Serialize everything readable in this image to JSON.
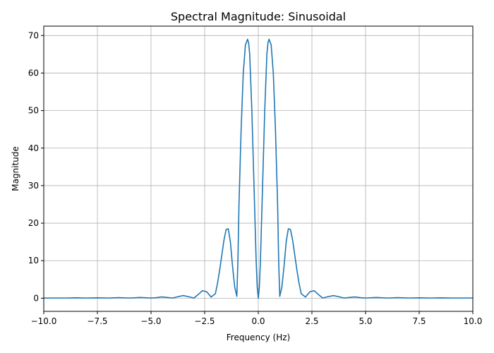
{
  "chart_data": {
    "type": "line",
    "title": "Spectral Magnitude: Sinusoidal",
    "xlabel": "Frequency (Hz)",
    "ylabel": "Magnitude",
    "xlim": [
      -10.0,
      10.0
    ],
    "ylim": [
      -3.5,
      72.5
    ],
    "xticks": [
      -10.0,
      -7.5,
      -5.0,
      -2.5,
      0.0,
      2.5,
      5.0,
      7.5,
      10.0
    ],
    "xtick_labels": [
      "−10.0",
      "−7.5",
      "−5.0",
      "−2.5",
      "0.0",
      "2.5",
      "5.0",
      "7.5",
      "10.0"
    ],
    "yticks": [
      0,
      10,
      20,
      30,
      40,
      50,
      60,
      70
    ],
    "ytick_labels": [
      "0",
      "10",
      "20",
      "30",
      "40",
      "50",
      "60",
      "70"
    ],
    "grid": true,
    "series": [
      {
        "color": "#1f77b4",
        "x": [
          -10.0,
          -9.0,
          -8.5,
          -8.0,
          -7.5,
          -7.0,
          -6.5,
          -6.0,
          -5.5,
          -5.0,
          -4.75,
          -4.5,
          -4.25,
          -4.0,
          -3.75,
          -3.5,
          -3.25,
          -3.0,
          -2.8,
          -2.6,
          -2.4,
          -2.2,
          -2.0,
          -1.9,
          -1.8,
          -1.7,
          -1.6,
          -1.5,
          -1.4,
          -1.3,
          -1.2,
          -1.1,
          -1.0,
          -0.95,
          -0.9,
          -0.8,
          -0.7,
          -0.6,
          -0.5,
          -0.45,
          -0.4,
          -0.3,
          -0.2,
          -0.1,
          -0.05,
          0.0,
          0.05,
          0.1,
          0.2,
          0.3,
          0.4,
          0.45,
          0.5,
          0.6,
          0.7,
          0.8,
          0.9,
          0.95,
          1.0,
          1.1,
          1.2,
          1.3,
          1.4,
          1.5,
          1.6,
          1.7,
          1.8,
          1.9,
          2.0,
          2.2,
          2.4,
          2.6,
          2.8,
          3.0,
          3.25,
          3.5,
          3.75,
          4.0,
          4.25,
          4.5,
          4.75,
          5.0,
          5.5,
          6.0,
          6.5,
          7.0,
          7.5,
          8.0,
          8.5,
          9.0,
          10.0
        ],
        "y": [
          0.05,
          0.05,
          0.1,
          0.05,
          0.1,
          0.05,
          0.15,
          0.05,
          0.2,
          0.05,
          0.15,
          0.35,
          0.2,
          0.05,
          0.4,
          0.7,
          0.4,
          0.05,
          1.0,
          2.0,
          1.7,
          0.3,
          1.2,
          4.0,
          7.5,
          11.5,
          15.5,
          18.3,
          18.5,
          15.0,
          8.5,
          3.0,
          0.5,
          10.0,
          25.0,
          45.0,
          60.0,
          67.5,
          69.0,
          68.0,
          65.0,
          50.0,
          30.0,
          10.0,
          3.0,
          0.0,
          3.0,
          10.0,
          30.0,
          50.0,
          65.0,
          68.0,
          69.0,
          67.5,
          60.0,
          45.0,
          25.0,
          10.0,
          0.5,
          3.0,
          8.5,
          15.0,
          18.5,
          18.3,
          15.5,
          11.5,
          7.5,
          4.0,
          1.2,
          0.3,
          1.7,
          2.0,
          1.0,
          0.05,
          0.4,
          0.7,
          0.4,
          0.05,
          0.2,
          0.35,
          0.15,
          0.05,
          0.2,
          0.05,
          0.15,
          0.05,
          0.1,
          0.05,
          0.1,
          0.05,
          0.05
        ]
      }
    ]
  }
}
